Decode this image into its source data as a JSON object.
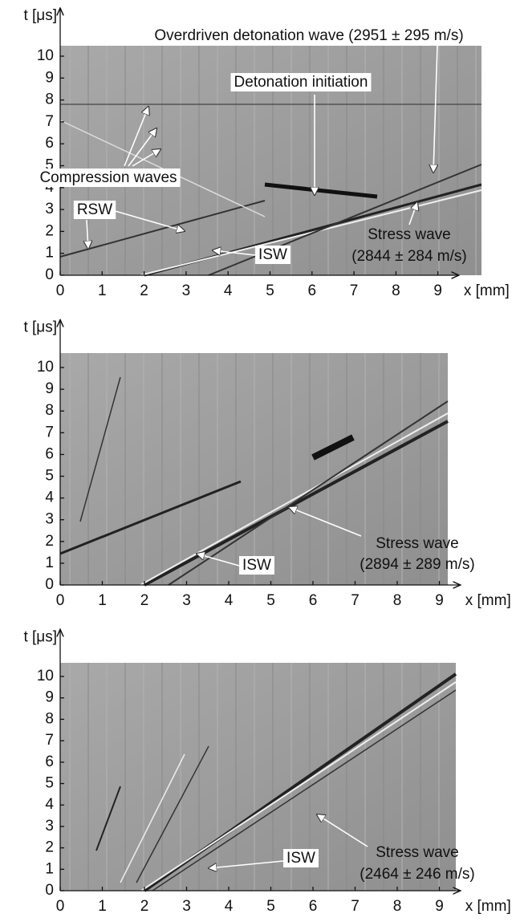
{
  "chart_data": [
    {
      "type": "image",
      "xlabel": "x [mm]",
      "ylabel": "t [μs]",
      "xlim": [
        0,
        9.5
      ],
      "ylim": [
        0,
        12.2
      ],
      "xticks": [
        0,
        1,
        2,
        3,
        4,
        5,
        6,
        7,
        8,
        9
      ],
      "yticks": [
        0,
        1,
        2,
        3,
        4,
        5,
        6,
        7,
        8,
        9,
        10
      ],
      "annotations": [
        "Overdriven detonation wave (2951 ± 295 m/s)",
        "Detonation initiation",
        "Compression waves",
        "RSW",
        "ISW",
        "Stress wave",
        "(2844 ± 284 m/s)"
      ]
    },
    {
      "type": "image",
      "xlabel": "x [mm]",
      "ylabel": "t [μs]",
      "xlim": [
        0,
        9.5
      ],
      "ylim": [
        0,
        12.2
      ],
      "xticks": [
        0,
        1,
        2,
        3,
        4,
        5,
        6,
        7,
        8,
        9
      ],
      "yticks": [
        0,
        1,
        2,
        3,
        4,
        5,
        6,
        7,
        8,
        9,
        10
      ],
      "annotations": [
        "Stress wave",
        "(2894 ± 289 m/s)",
        "ISW"
      ]
    },
    {
      "type": "image",
      "xlabel": "x [mm]",
      "ylabel": "t [μs]",
      "xlim": [
        0,
        9.5
      ],
      "ylim": [
        0,
        12.2
      ],
      "xticks": [
        0,
        1,
        2,
        3,
        4,
        5,
        6,
        7,
        8,
        9
      ],
      "yticks": [
        0,
        1,
        2,
        3,
        4,
        5,
        6,
        7,
        8,
        9,
        10
      ],
      "annotations": [
        "Stress wave",
        "(2464 ± 246 m/s)",
        "ISW"
      ]
    }
  ]
}
